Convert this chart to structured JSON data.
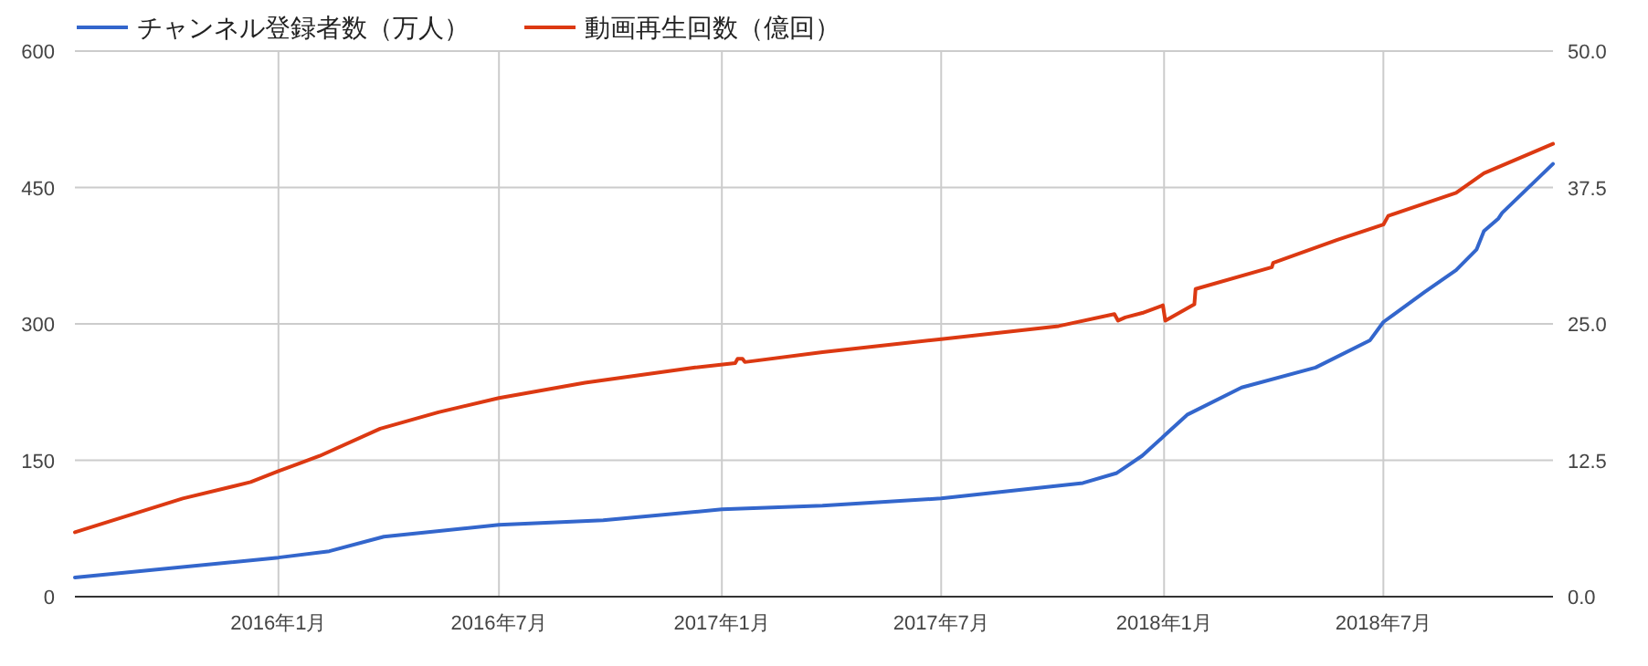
{
  "chart_data": {
    "type": "line",
    "legend": "top",
    "grid": true,
    "line_style": "solid",
    "xlim": [
      "2015-07-17",
      "2018-11-18"
    ],
    "xticks": [
      {
        "value": "2016-01",
        "label": "2016年1月"
      },
      {
        "value": "2016-07",
        "label": "2016年7月"
      },
      {
        "value": "2017-01",
        "label": "2017年1月"
      },
      {
        "value": "2017-07",
        "label": "2017年7月"
      },
      {
        "value": "2018-01",
        "label": "2018年1月"
      },
      {
        "value": "2018-07",
        "label": "2018年7月"
      }
    ],
    "ylim": [
      0,
      600
    ],
    "yticks": [
      0,
      150,
      300,
      450,
      600
    ],
    "y2lim": [
      0,
      50
    ],
    "y2ticks": [
      {
        "value": 0,
        "label": "0.0"
      },
      12.5,
      {
        "value": 25,
        "label": "25.0"
      },
      37.5,
      {
        "value": 50,
        "label": "50.0"
      }
    ],
    "series": [
      {
        "name": "チャンネル登録者数（万人）",
        "color": "#3366cc",
        "x": [
          "2015-07-17",
          "2016-01-01",
          "2016-02-12",
          "2016-03-28",
          "2016-07-01",
          "2016-09-25",
          "2017-01-01",
          "2017-03-25",
          "2017-07-01",
          "2017-10-26",
          "2017-11-23",
          "2017-12-14",
          "2018-01-02",
          "2018-01-20",
          "2018-03-06",
          "2018-05-06",
          "2018-06-20",
          "2018-07-01",
          "2018-08-04",
          "2018-08-30",
          "2018-09-16",
          "2018-09-22",
          "2018-10-04",
          "2018-10-07",
          "2018-11-18"
        ],
        "values": [
          21,
          43,
          50,
          66,
          79,
          84,
          96,
          100,
          108,
          125,
          136,
          155,
          178,
          200,
          230,
          252,
          282,
          302,
          335,
          359,
          382,
          402,
          416,
          422,
          476
        ]
      },
      {
        "name": "動画再生回数（億回）",
        "color": "#dc3912",
        "axis": "y2",
        "x": [
          "2015-07-17",
          "2015-10-14",
          "2015-12-09",
          "2016-01-01",
          "2016-02-04",
          "2016-03-25",
          "2016-05-12",
          "2016-07-01",
          "2016-09-10",
          "2016-12-10",
          "2017-01-12",
          "2017-01-14",
          "2017-01-18",
          "2017-01-20",
          "2017-03-25",
          "2017-07-01",
          "2017-10-06",
          "2017-11-21",
          "2017-11-24",
          "2017-11-30",
          "2017-12-14",
          "2017-12-31",
          "2018-01-02",
          "2018-01-26",
          "2018-01-27",
          "2018-03-31",
          "2018-04-01",
          "2018-05-24",
          "2018-07-01",
          "2018-07-05",
          "2018-08-30",
          "2018-09-22",
          "2018-11-18"
        ],
        "values": [
          5.9,
          9.0,
          10.5,
          11.5,
          12.9,
          15.4,
          16.9,
          18.2,
          19.6,
          21.0,
          21.4,
          21.8,
          21.8,
          21.5,
          22.4,
          23.6,
          24.8,
          25.9,
          25.3,
          25.6,
          26.0,
          26.7,
          25.3,
          26.8,
          28.2,
          30.2,
          30.6,
          32.7,
          34.1,
          34.9,
          37.0,
          38.8,
          41.5
        ]
      }
    ]
  }
}
